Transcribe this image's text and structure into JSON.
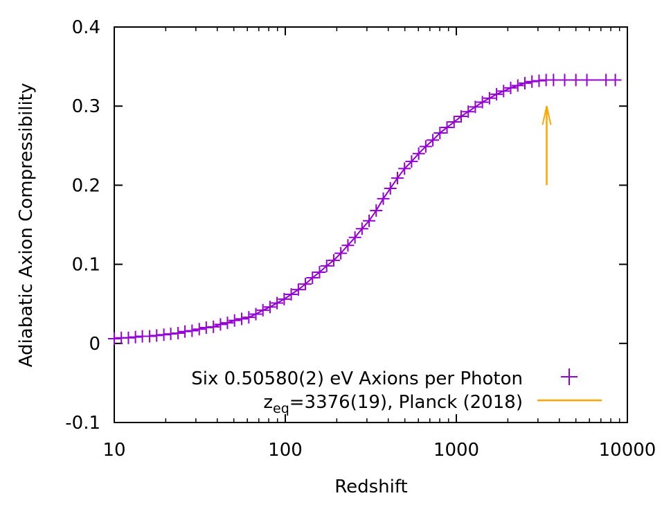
{
  "chart_data": {
    "type": "line",
    "xlabel": "Redshift",
    "ylabel": "Adiabatic Axion Compressibility",
    "xscale": "log",
    "xlim": [
      10,
      10000
    ],
    "ylim": [
      -0.1,
      0.4
    ],
    "xticks": [
      "10",
      "100",
      "1000",
      "10000"
    ],
    "yticks": [
      "-0.1",
      "0",
      "0.1",
      "0.2",
      "0.3",
      "0.4"
    ],
    "grid": false,
    "legend_position": "bottom-right",
    "series": [
      {
        "name": "Six 0.50580(2) eV Axions per Photon",
        "style": "linespoints",
        "marker": "plus",
        "color": "#9400d3",
        "x": [
          10,
          11,
          12.1,
          13.3,
          14.6,
          16.1,
          17.7,
          19.5,
          21.4,
          23.6,
          25.9,
          28.5,
          31.4,
          34.5,
          38,
          41.8,
          45.9,
          50.5,
          55.6,
          61.2,
          67.3,
          74,
          81.4,
          89.5,
          98.5,
          108.3,
          119.2,
          131.1,
          144.2,
          158.6,
          174.5,
          191.9,
          211.1,
          232.3,
          255.5,
          281,
          309.1,
          340,
          374,
          411.4,
          452.6,
          497.9,
          547.6,
          602.4,
          662.6,
          728.9,
          801.8,
          882,
          970.2,
          1067,
          1174,
          1291,
          1420,
          1562,
          1719,
          1890,
          2079,
          2287,
          2516,
          2768,
          3045,
          3349,
          3700,
          4300,
          5000,
          5800,
          7500,
          8500
        ],
        "y": [
          0.006,
          0.007,
          0.007,
          0.008,
          0.009,
          0.009,
          0.01,
          0.011,
          0.012,
          0.013,
          0.015,
          0.016,
          0.018,
          0.02,
          0.021,
          0.024,
          0.026,
          0.029,
          0.031,
          0.033,
          0.037,
          0.042,
          0.046,
          0.051,
          0.056,
          0.062,
          0.068,
          0.075,
          0.083,
          0.09,
          0.098,
          0.105,
          0.114,
          0.124,
          0.134,
          0.145,
          0.155,
          0.168,
          0.183,
          0.196,
          0.209,
          0.221,
          0.23,
          0.24,
          0.249,
          0.257,
          0.266,
          0.273,
          0.28,
          0.287,
          0.293,
          0.299,
          0.305,
          0.31,
          0.315,
          0.319,
          0.323,
          0.326,
          0.329,
          0.331,
          0.332,
          0.333,
          0.333,
          0.333,
          0.333,
          0.333,
          0.333,
          0.333
        ]
      },
      {
        "name": "z_eq=3376(19), Planck (2018)",
        "legend_main": "z",
        "legend_sub": "eq",
        "legend_rest": "=3376(19), Planck (2018)",
        "style": "arrow",
        "color": "#ffa500",
        "x": [
          3376,
          3376
        ],
        "y": [
          0.2,
          0.3
        ]
      }
    ]
  }
}
